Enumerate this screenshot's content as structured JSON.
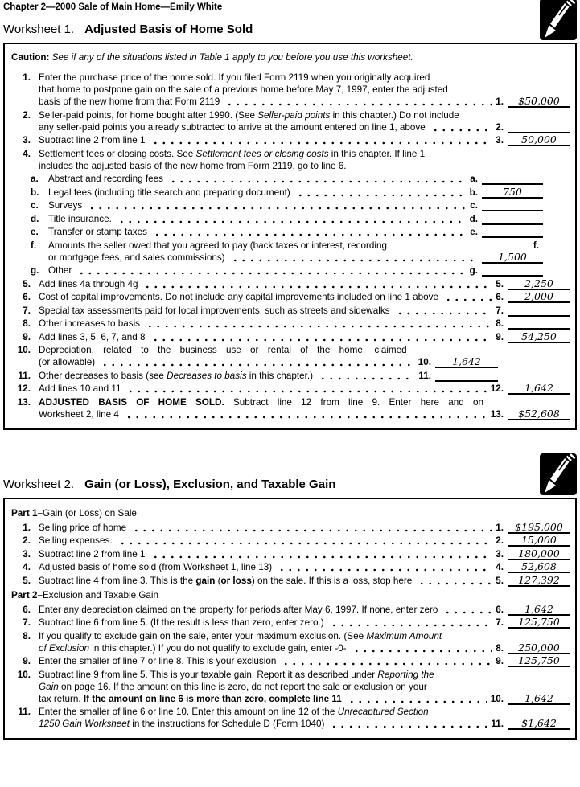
{
  "header": {
    "title": "Chapter 2—2000 Sale of Main Home—Emily White"
  },
  "icons": {
    "worksheet_marker": "pencil-icon"
  },
  "worksheet1": {
    "label": "Worksheet 1.",
    "title": "Adjusted Basis of Home Sold",
    "caution": [
      [
        "b",
        "Caution: "
      ],
      [
        "i",
        "See if any of the situations listed in Table 1 apply to you before you use this worksheet."
      ]
    ],
    "rows": [
      {
        "num": "1.",
        "ref": "1.",
        "amount": "$50,000",
        "variant": "main",
        "lines": [
          [
            [
              "",
              "Enter the purchase price of the home sold. If you filed Form 2119 when you originally acquired"
            ]
          ],
          [
            [
              "",
              "that home to postpone gain on the sale of a previous home before May 7, 1997, enter the adjusted"
            ]
          ],
          [
            [
              "",
              "basis of the new home from that Form 2119"
            ]
          ]
        ]
      },
      {
        "num": "2.",
        "ref": "2.",
        "amount": "",
        "variant": "main",
        "lines": [
          [
            [
              "",
              "Seller-paid points, for home bought after 1990. (See "
            ],
            [
              "i",
              "Seller-paid points"
            ],
            [
              "",
              " in this chapter.) Do not include"
            ]
          ],
          [
            [
              "",
              "any seller-paid points you already subtracted to arrive at the amount entered on line 1, above"
            ]
          ]
        ]
      },
      {
        "num": "3.",
        "ref": "3.",
        "amount": "50,000",
        "variant": "main",
        "lines": [
          [
            [
              "",
              "Subtract line 2 from line 1"
            ]
          ]
        ]
      },
      {
        "num": "4.",
        "ref": null,
        "amount": null,
        "variant": "main",
        "lines": [
          [
            [
              "",
              "Settlement fees or closing costs. See "
            ],
            [
              "i",
              "Settlement fees or closing costs"
            ],
            [
              "",
              " in this chapter. If line 1"
            ]
          ],
          [
            [
              "",
              "includes the adjusted basis of the new home from Form 2119, go to line 6."
            ]
          ]
        ]
      },
      {
        "num": "a.",
        "ref": "a.",
        "amount": "",
        "variant": "sub",
        "lines": [
          [
            [
              "",
              "Abstract and recording fees"
            ]
          ]
        ]
      },
      {
        "num": "b.",
        "ref": "b.",
        "amount": "750",
        "variant": "sub",
        "lines": [
          [
            [
              "",
              "Legal fees (including title search and preparing document)"
            ]
          ]
        ]
      },
      {
        "num": "c.",
        "ref": "c.",
        "amount": "",
        "variant": "sub",
        "lines": [
          [
            [
              "",
              "Surveys"
            ]
          ]
        ]
      },
      {
        "num": "d.",
        "ref": "d.",
        "amount": "",
        "variant": "sub",
        "lines": [
          [
            [
              "",
              "Title insurance."
            ]
          ]
        ]
      },
      {
        "num": "e.",
        "ref": "e.",
        "amount": "",
        "variant": "sub",
        "lines": [
          [
            [
              "",
              "Transfer or stamp taxes"
            ]
          ]
        ]
      },
      {
        "num": "f.",
        "ref": "f.",
        "amount": "1,500",
        "variant": "fsplit",
        "lines": [
          [
            [
              "",
              "Amounts the seller owed that you agreed to pay (back taxes or interest, recording"
            ]
          ],
          [
            [
              "",
              "or mortgage fees, and sales commissions)"
            ]
          ]
        ]
      },
      {
        "num": "g.",
        "ref": "g.",
        "amount": "",
        "variant": "sub",
        "lines": [
          [
            [
              "",
              "Other"
            ]
          ]
        ]
      },
      {
        "num": "5.",
        "ref": "5.",
        "amount": "2,250",
        "variant": "main",
        "lines": [
          [
            [
              "",
              "Add lines 4a through 4g"
            ]
          ]
        ]
      },
      {
        "num": "6.",
        "ref": "6.",
        "amount": "2,000",
        "variant": "main",
        "lines": [
          [
            [
              "",
              "Cost of capital improvements. Do not include any capital improvements included on line 1 above"
            ]
          ]
        ]
      },
      {
        "num": "7.",
        "ref": "7.",
        "amount": "",
        "variant": "main",
        "lines": [
          [
            [
              "",
              "Special tax assessments paid for local improvements, such as streets and sidewalks"
            ]
          ]
        ]
      },
      {
        "num": "8.",
        "ref": "8.",
        "amount": "",
        "variant": "main",
        "lines": [
          [
            [
              "",
              "Other increases to basis"
            ]
          ]
        ]
      },
      {
        "num": "9.",
        "ref": "9.",
        "amount": "54,250",
        "variant": "main",
        "lines": [
          [
            [
              "",
              "Add lines 3, 5, 6, 7, and 8"
            ]
          ]
        ]
      },
      {
        "num": "10.",
        "ref": "10.",
        "amount": "1,642",
        "variant": "short",
        "lines": [
          [
            [
              "j",
              "Depreciation, related to the business use or rental of the home, claimed"
            ]
          ],
          [
            [
              "",
              "(or allowable)"
            ]
          ]
        ]
      },
      {
        "num": "11.",
        "ref": "11.",
        "amount": "",
        "variant": "short",
        "lines": [
          [
            [
              "",
              "Other decreases to basis (see "
            ],
            [
              "i",
              "Decreases to basis"
            ],
            [
              "",
              " in this chapter.)"
            ]
          ]
        ]
      },
      {
        "num": "12.",
        "ref": "12.",
        "amount": "1,642",
        "variant": "main",
        "lines": [
          [
            [
              "",
              "Add lines 10 and 11"
            ]
          ]
        ]
      },
      {
        "num": "13.",
        "ref": "13.",
        "amount": "$52,608",
        "variant": "main",
        "lines": [
          [
            [
              "b j",
              "ADJUSTED BASIS OF HOME SOLD."
            ],
            [
              "j",
              " Subtract line 12 from line 9. Enter here and on"
            ]
          ],
          [
            [
              "",
              "Worksheet 2, line 4"
            ]
          ]
        ]
      }
    ]
  },
  "worksheet2": {
    "label": "Worksheet 2.",
    "title": "Gain (or Loss), Exclusion, and Taxable Gain",
    "part1": [
      [
        "b",
        "Part 1–"
      ],
      [
        "",
        "Gain (or Loss) on Sale"
      ]
    ],
    "part2": [
      [
        "b",
        "Part 2–"
      ],
      [
        "",
        "Exclusion and Taxable Gain"
      ]
    ],
    "part1_rows": [
      {
        "num": "1.",
        "ref": "1.",
        "amount": "$195,000",
        "variant": "main",
        "lines": [
          [
            [
              "",
              "Selling price of home"
            ]
          ]
        ]
      },
      {
        "num": "2.",
        "ref": "2.",
        "amount": "15,000",
        "variant": "main",
        "lines": [
          [
            [
              "",
              "Selling expenses."
            ]
          ]
        ]
      },
      {
        "num": "3.",
        "ref": "3.",
        "amount": "180,000",
        "variant": "main",
        "lines": [
          [
            [
              "",
              "Subtract line 2 from line 1"
            ]
          ]
        ]
      },
      {
        "num": "4.",
        "ref": "4.",
        "amount": "52,608",
        "variant": "main",
        "lines": [
          [
            [
              "",
              "Adjusted basis of home sold (from Worksheet 1, line 13)"
            ]
          ]
        ]
      },
      {
        "num": "5.",
        "ref": "5.",
        "amount": "127,392",
        "variant": "main",
        "lines": [
          [
            [
              "",
              "Subtract line 4 from line 3. This is the "
            ],
            [
              "b",
              "gain"
            ],
            [
              "",
              " ("
            ],
            [
              "b",
              "or loss"
            ],
            [
              "",
              ") on the sale. If this is a loss, stop here"
            ]
          ]
        ]
      }
    ],
    "part2_rows": [
      {
        "num": "6.",
        "ref": "6.",
        "amount": "1,642",
        "variant": "main",
        "lines": [
          [
            [
              "",
              "Enter any depreciation claimed on the property for periods after May 6, 1997. If none, enter zero"
            ]
          ]
        ]
      },
      {
        "num": "7.",
        "ref": "7.",
        "amount": "125,750",
        "variant": "main",
        "lines": [
          [
            [
              "",
              "Subtract line 6 from line 5. (If the result is less than zero, enter zero.)"
            ]
          ]
        ]
      },
      {
        "num": "8.",
        "ref": "8.",
        "amount": "250,000",
        "variant": "main",
        "lines": [
          [
            [
              "",
              "If you qualify to exclude gain on the sale, enter your maximum exclusion. (See "
            ],
            [
              "i",
              "Maximum Amount"
            ]
          ],
          [
            [
              "i",
              "of Exclusion"
            ],
            [
              "",
              " in this chapter.) If you do not qualify to exclude gain, enter -0-"
            ]
          ]
        ]
      },
      {
        "num": "9.",
        "ref": "9.",
        "amount": "125,750",
        "variant": "main",
        "lines": [
          [
            [
              "",
              "Enter the smaller of line 7 or line 8. This is your exclusion"
            ]
          ]
        ]
      },
      {
        "num": "10.",
        "ref": "10.",
        "amount": "1,642",
        "variant": "main",
        "lines": [
          [
            [
              "",
              "Subtract line 9 from line 5. This is your taxable gain. Report it as described under "
            ],
            [
              "i",
              "Reporting the"
            ]
          ],
          [
            [
              "i",
              "Gain"
            ],
            [
              "",
              " on page 16. If the amount on this line is zero, do not report the sale or exclusion on your"
            ]
          ],
          [
            [
              "",
              "tax return. "
            ],
            [
              "b",
              "If the amount on line 6 is more than zero, complete line 11"
            ]
          ]
        ]
      },
      {
        "num": "11.",
        "ref": "11.",
        "amount": "$1,642",
        "variant": "main",
        "lines": [
          [
            [
              "",
              "Enter the smaller of line 6 or line 10. Enter this amount on line 12 of the "
            ],
            [
              "i",
              "Unrecaptured Section"
            ]
          ],
          [
            [
              "i",
              "1250 Gain Worksheet"
            ],
            [
              "",
              " in the instructions for Schedule D (Form 1040)"
            ]
          ]
        ]
      }
    ]
  }
}
